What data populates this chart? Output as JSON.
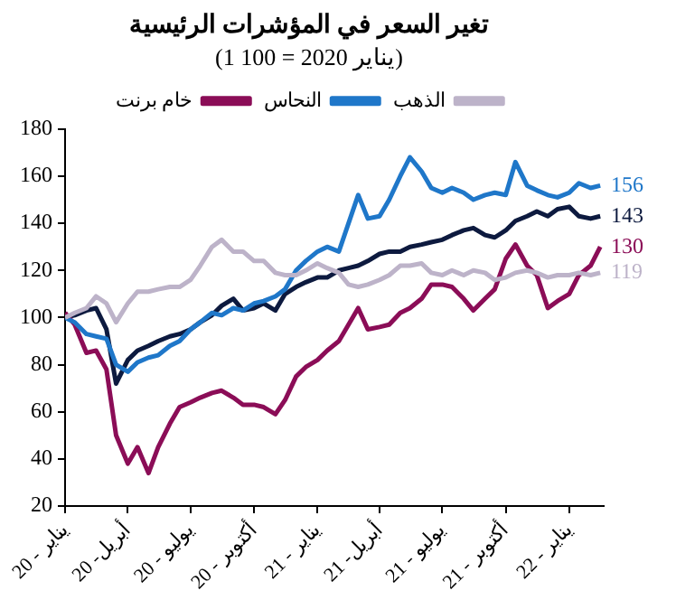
{
  "chart_data": {
    "type": "line",
    "title": "تغير السعر في المؤشرات الرئيسية",
    "subtitle": "(1 يناير 2020 = 100)",
    "x": [
      "2020-01-01",
      "2020-01-15",
      "2020-02-01",
      "2020-02-15",
      "2020-03-01",
      "2020-03-15",
      "2020-04-01",
      "2020-04-15",
      "2020-05-01",
      "2020-05-15",
      "2020-06-01",
      "2020-06-15",
      "2020-07-01",
      "2020-07-15",
      "2020-08-01",
      "2020-08-15",
      "2020-09-01",
      "2020-09-15",
      "2020-10-01",
      "2020-10-15",
      "2020-11-01",
      "2020-11-15",
      "2020-12-01",
      "2020-12-15",
      "2021-01-01",
      "2021-01-15",
      "2021-02-01",
      "2021-02-15",
      "2021-03-01",
      "2021-03-15",
      "2021-04-01",
      "2021-04-15",
      "2021-05-01",
      "2021-05-15",
      "2021-06-01",
      "2021-06-15",
      "2021-07-01",
      "2021-07-15",
      "2021-08-01",
      "2021-08-15",
      "2021-09-01",
      "2021-09-15",
      "2021-10-01",
      "2021-10-15",
      "2021-11-01",
      "2021-11-15",
      "2021-12-01",
      "2021-12-15",
      "2022-01-01",
      "2022-01-15",
      "2022-02-01",
      "2022-02-15"
    ],
    "series": [
      {
        "name": "الذهب",
        "color": "#bdb3c9",
        "values": [
          100,
          102,
          104,
          109,
          106,
          98,
          106,
          111,
          111,
          112,
          113,
          113,
          116,
          122,
          130,
          133,
          128,
          128,
          124,
          124,
          119,
          118,
          118,
          120,
          123,
          121,
          119,
          114,
          113,
          114,
          116,
          118,
          122,
          122,
          123,
          119,
          118,
          120,
          118,
          120,
          119,
          116,
          117,
          119,
          120,
          119,
          117,
          118,
          118,
          119,
          118,
          119
        ],
        "value_labels": [
          null,
          null,
          null,
          null,
          null,
          null,
          null,
          null,
          null,
          null,
          null,
          null,
          null,
          null,
          null,
          null,
          null,
          null,
          null,
          null,
          null,
          null,
          null,
          null,
          null,
          null,
          null,
          null,
          null,
          null,
          null,
          null,
          null,
          null,
          null,
          null,
          null,
          null,
          null,
          null,
          null,
          null,
          null,
          null,
          null,
          null,
          null,
          null,
          null,
          null,
          null,
          "119"
        ]
      },
      {
        "name": "النحاس",
        "color": "#1f77c9",
        "values": [
          100,
          98,
          93,
          92,
          91,
          80,
          77,
          81,
          83,
          84,
          88,
          90,
          95,
          98,
          102,
          101,
          104,
          103,
          106,
          107,
          109,
          112,
          120,
          124,
          128,
          130,
          128,
          140,
          152,
          142,
          143,
          150,
          160,
          168,
          162,
          155,
          153,
          155,
          153,
          150,
          152,
          153,
          152,
          166,
          156,
          154,
          152,
          151,
          153,
          157,
          155,
          156
        ],
        "value_labels": [
          null,
          null,
          null,
          null,
          null,
          null,
          null,
          null,
          null,
          null,
          null,
          null,
          null,
          null,
          null,
          null,
          null,
          null,
          null,
          null,
          null,
          null,
          null,
          null,
          null,
          null,
          null,
          null,
          null,
          null,
          null,
          null,
          null,
          null,
          null,
          null,
          null,
          null,
          null,
          null,
          null,
          null,
          null,
          null,
          null,
          null,
          null,
          null,
          null,
          null,
          null,
          "156"
        ]
      },
      {
        "name": "خام برنت",
        "color": "#8b0d57",
        "values": [
          102,
          97,
          85,
          86,
          78,
          50,
          38,
          45,
          34,
          45,
          55,
          62,
          64,
          66,
          68,
          69,
          66,
          63,
          63,
          62,
          59,
          65,
          75,
          79,
          82,
          86,
          90,
          97,
          104,
          95,
          96,
          97,
          102,
          104,
          108,
          114,
          114,
          113,
          108,
          103,
          108,
          112,
          125,
          131,
          122,
          118,
          104,
          107,
          110,
          118,
          122,
          130
        ],
        "value_labels": [
          null,
          null,
          null,
          null,
          null,
          null,
          null,
          null,
          null,
          null,
          null,
          null,
          null,
          null,
          null,
          null,
          null,
          null,
          null,
          null,
          null,
          null,
          null,
          null,
          null,
          null,
          null,
          null,
          null,
          null,
          null,
          null,
          null,
          null,
          null,
          null,
          null,
          null,
          null,
          null,
          null,
          null,
          null,
          null,
          null,
          null,
          null,
          null,
          null,
          null,
          null,
          "130"
        ]
      },
      {
        "color": "#0d1a3f",
        "values": [
          100,
          101,
          103,
          104,
          95,
          72,
          82,
          86,
          88,
          90,
          92,
          93,
          95,
          98,
          101,
          105,
          108,
          103,
          104,
          106,
          103,
          110,
          113,
          115,
          117,
          117,
          120,
          121,
          122,
          124,
          127,
          128,
          128,
          130,
          131,
          132,
          133,
          135,
          137,
          138,
          135,
          134,
          137,
          141,
          143,
          145,
          143,
          146,
          147,
          143,
          142,
          143
        ],
        "value_labels": [
          null,
          null,
          null,
          null,
          null,
          null,
          null,
          null,
          null,
          null,
          null,
          null,
          null,
          null,
          null,
          null,
          null,
          null,
          null,
          null,
          null,
          null,
          null,
          null,
          null,
          null,
          null,
          null,
          null,
          null,
          null,
          null,
          null,
          null,
          null,
          null,
          null,
          null,
          null,
          null,
          null,
          null,
          null,
          null,
          null,
          null,
          null,
          null,
          null,
          null,
          null,
          "143"
        ]
      }
    ],
    "xlim": [
      "2020-01-01",
      "2022-02-20"
    ],
    "xticks": [
      {
        "value": "2020-01-01",
        "label": "يناير - 20"
      },
      {
        "value": "2020-04-01",
        "label": "أبريل- 20"
      },
      {
        "value": "2020-07-01",
        "label": "يوليو - 20"
      },
      {
        "value": "2020-10-01",
        "label": "أكتوبر - 20"
      },
      {
        "value": "2021-01-01",
        "label": "يناير - 21"
      },
      {
        "value": "2021-04-01",
        "label": "أبريل- 21"
      },
      {
        "value": "2021-07-01",
        "label": "يوليو - 21"
      },
      {
        "value": "2021-10-01",
        "label": "أكتوبر - 21"
      },
      {
        "value": "2022-01-01",
        "label": "يناير - 22"
      }
    ],
    "ylim": [
      20,
      180
    ],
    "yticks": [
      20,
      40,
      60,
      80,
      100,
      120,
      140,
      160,
      180
    ],
    "grid": false,
    "legend": "top",
    "marker": "none",
    "line_style": "solid"
  }
}
